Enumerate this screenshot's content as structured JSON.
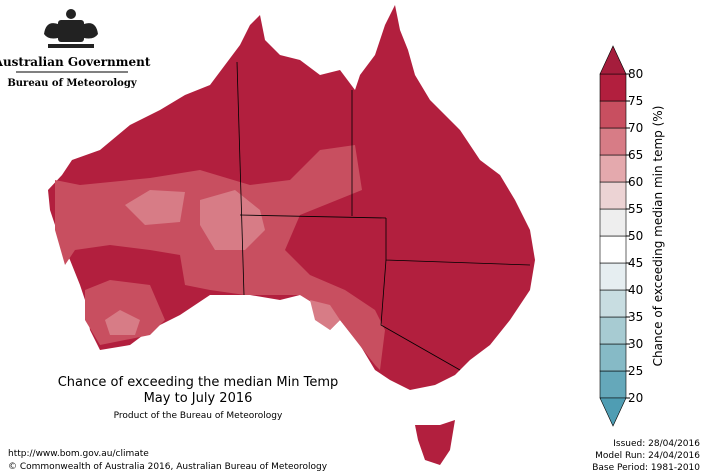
{
  "header": {
    "agency": "Australian Government",
    "bureau": "Bureau of Meteorology"
  },
  "map": {
    "title": "Chance of exceeding the median Min Temp",
    "period": "May to July 2016",
    "product": "Product of the Bureau of Meteorology"
  },
  "colorbar": {
    "label": "Chance of exceeding median min temp (%)",
    "ticks": [
      20,
      25,
      30,
      35,
      40,
      45,
      50,
      55,
      60,
      65,
      70,
      75,
      80
    ],
    "colors": [
      "#65a8ba",
      "#86bac6",
      "#a7cbd2",
      "#c8dde1",
      "#e6eef1",
      "#ffffff",
      "#eeeeee",
      "#ecd3d4",
      "#e4a9ad",
      "#d77c86",
      "#c84f60",
      "#b21f3e"
    ],
    "under_color": "#4f9db3",
    "over_color": "#a51d3c"
  },
  "footer": {
    "url": "http://www.bom.gov.au/climate",
    "copyright": "© Commonwealth of Australia 2016, Australian Bureau of Meteorology",
    "issued": "Issued: 28/04/2016",
    "model_run": "Model Run: 24/04/2016",
    "base_period": "Base Period: 1981-2010"
  }
}
